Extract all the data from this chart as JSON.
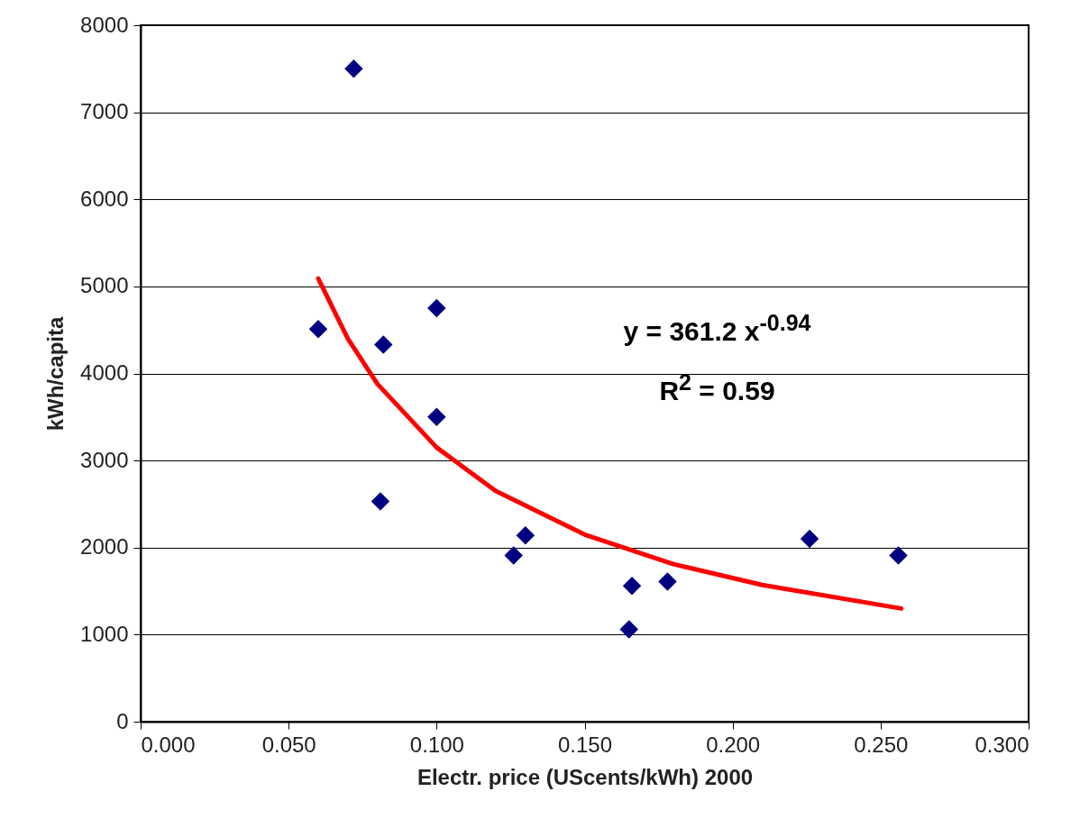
{
  "chart_data": {
    "type": "scatter",
    "xlabel": "Electr. price (UScents/kWh) 2000",
    "ylabel": "kWh/capita",
    "xlim": [
      0,
      0.3
    ],
    "xticks": [
      {
        "value": 0,
        "label": "0.000"
      },
      {
        "value": 0.05,
        "label": "0.050"
      },
      {
        "value": 0.1,
        "label": "0.100"
      },
      {
        "value": 0.15,
        "label": "0.150"
      },
      {
        "value": 0.2,
        "label": "0.200"
      },
      {
        "value": 0.25,
        "label": "0.250"
      },
      {
        "value": 0.3,
        "label": "0.300"
      }
    ],
    "ylim": [
      0,
      8000
    ],
    "yticks": [
      0,
      1000,
      2000,
      3000,
      4000,
      5000,
      6000,
      7000,
      8000
    ],
    "grid": "y",
    "series": [
      {
        "marker": "diamond",
        "color": "#000080",
        "x": [
          0.072,
          0.06,
          0.082,
          0.1,
          0.1,
          0.081,
          0.13,
          0.126,
          0.166,
          0.178,
          0.165,
          0.226,
          0.256
        ],
        "values": [
          7500,
          4510,
          4330,
          4750,
          3500,
          2530,
          2140,
          1910,
          1560,
          1610,
          1060,
          2100,
          1910
        ]
      },
      {
        "type": "line",
        "color": "#ff0000",
        "x": [
          0.06,
          0.07,
          0.08,
          0.1,
          0.12,
          0.15,
          0.18,
          0.21,
          0.257
        ],
        "values": [
          5090,
          4400,
          3880,
          3150,
          2650,
          2150,
          1810,
          1570,
          1300
        ]
      }
    ],
    "annotations": [
      "y = 361.2 x$^{-0.94}$",
      "R$^{2}$ = 0.59"
    ]
  }
}
